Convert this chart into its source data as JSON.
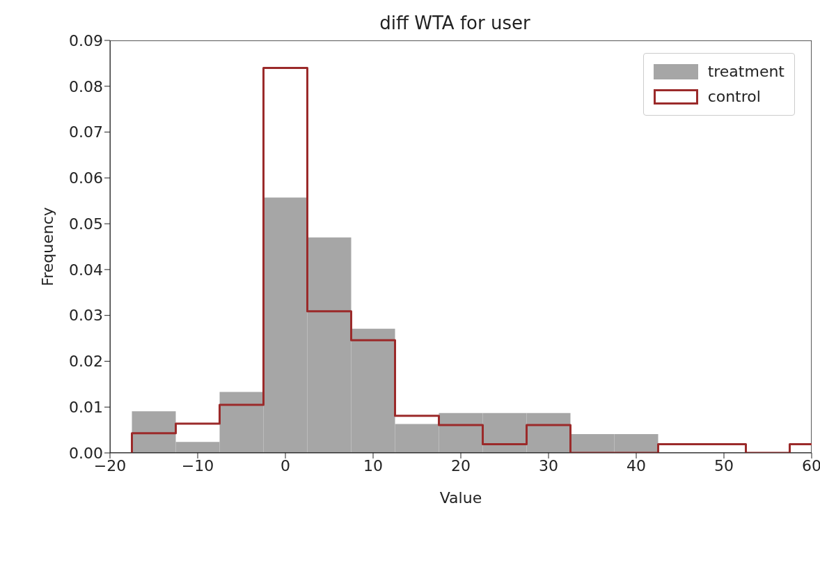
{
  "chart_data": {
    "type": "histogram",
    "title": "diff WTA for user",
    "xlabel": "Value",
    "ylabel": "Frequency",
    "bins": [
      -17.5,
      -12.5,
      -7.5,
      -2.5,
      2.5,
      7.5,
      12.5,
      17.5,
      22.5,
      27.5,
      32.5,
      37.5,
      42.5,
      47.5,
      52.5,
      57.5,
      62.5
    ],
    "series": [
      {
        "name": "treatment",
        "color": "#a6a6a6",
        "values": [
          0.0091,
          0.0024,
          0.0133,
          0.0557,
          0.047,
          0.0271,
          0.0063,
          0.0087,
          0.0087,
          0.0087,
          0.0041,
          0.0041,
          0,
          0,
          0,
          0
        ]
      },
      {
        "name": "control",
        "type": "step",
        "color": "#9b2a2a",
        "x": [
          -17.5,
          -17.5,
          -12.5,
          -7.5,
          -2.5,
          2.5,
          7.5,
          12.5,
          17.5,
          22.5,
          27.5,
          32.5,
          37.5,
          42.5,
          47.5,
          52.5,
          57.5,
          60
        ],
        "values": [
          0,
          0.0043,
          0.0064,
          0.0105,
          0.084,
          0.0309,
          0.0246,
          0.0081,
          0.0061,
          0.0019,
          0.0061,
          0,
          0,
          0.0019,
          0.0019,
          0,
          0.0019,
          0.0019
        ]
      }
    ],
    "xlim": [
      -20,
      60
    ],
    "xticks": [
      {
        "value": -20,
        "label": "−20"
      },
      {
        "value": -10,
        "label": "−10"
      },
      0,
      10,
      20,
      30,
      40,
      50,
      60
    ],
    "ylim": [
      0,
      0.09
    ],
    "yticks": [
      {
        "value": 0,
        "label": "0.00"
      },
      {
        "value": 0.01,
        "label": "0.01"
      },
      {
        "value": 0.02,
        "label": "0.02"
      },
      {
        "value": 0.03,
        "label": "0.03"
      },
      {
        "value": 0.04,
        "label": "0.04"
      },
      {
        "value": 0.05,
        "label": "0.05"
      },
      {
        "value": 0.06,
        "label": "0.06"
      },
      {
        "value": 0.07,
        "label": "0.07"
      },
      {
        "value": 0.08,
        "label": "0.08"
      },
      {
        "value": 0.09,
        "label": "0.09"
      }
    ],
    "legend": "top right",
    "grid": false
  }
}
